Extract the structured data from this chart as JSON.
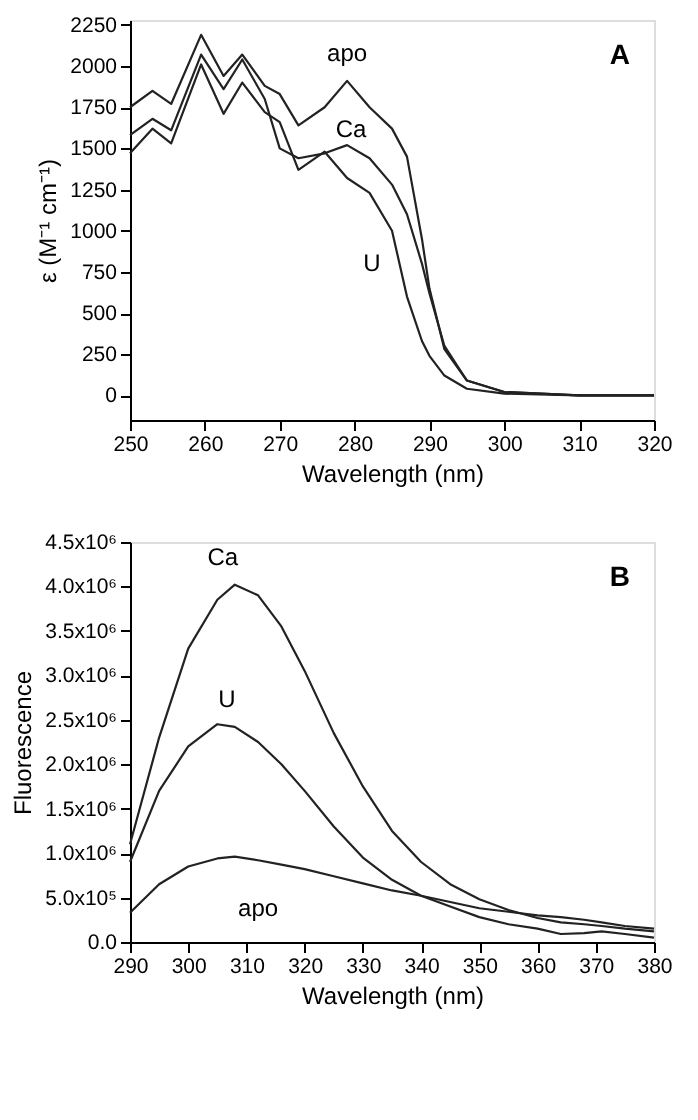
{
  "chart_data": [
    {
      "type": "line",
      "xlabel": "Wavelength  (nm)",
      "ylabel": "ε (M⁻¹ cm⁻¹)",
      "annotations": [
        "A"
      ],
      "grid": false,
      "marker": "none",
      "line_style": "solid",
      "x": [
        250,
        253,
        255.5,
        259.5,
        262.5,
        265,
        268,
        270,
        272.5,
        276,
        279,
        282,
        285,
        287,
        289,
        290,
        292,
        295,
        300,
        310,
        320
      ],
      "xlim": [
        250,
        320
      ],
      "xticks": [
        250,
        260,
        270,
        280,
        290,
        300,
        310,
        320
      ],
      "ylim": [
        -150,
        2280
      ],
      "yticks": [
        0,
        250,
        500,
        750,
        1000,
        1250,
        1500,
        1750,
        2000,
        2250
      ],
      "series": [
        {
          "name": "apo",
          "color": "#222222",
          "values": [
            1750,
            1850,
            1770,
            2190,
            1940,
            2070,
            1880,
            1830,
            1640,
            1750,
            1910,
            1750,
            1620,
            1450,
            950,
            650,
            280,
            90,
            20,
            0,
            0
          ]
        },
        {
          "name": "Ca",
          "color": "#222222",
          "values": [
            1580,
            1680,
            1610,
            2070,
            1860,
            2040,
            1800,
            1500,
            1440,
            1470,
            1520,
            1440,
            1280,
            1100,
            800,
            620,
            300,
            90,
            20,
            0,
            0
          ]
        },
        {
          "name": "U",
          "color": "#222222",
          "values": [
            1470,
            1620,
            1530,
            2010,
            1710,
            1900,
            1720,
            1660,
            1370,
            1480,
            1320,
            1230,
            1000,
            600,
            330,
            240,
            120,
            40,
            10,
            0,
            0
          ]
        }
      ]
    },
    {
      "type": "line",
      "xlabel": "Wavelength  (nm)",
      "ylabel": "Fluorescence",
      "annotations": [
        "B"
      ],
      "grid": false,
      "marker": "none",
      "line_style": "solid",
      "x": [
        290,
        295,
        300,
        305,
        308,
        312,
        316,
        320,
        325,
        330,
        335,
        340,
        345,
        350,
        355,
        360,
        364,
        368,
        371,
        375,
        380
      ],
      "xlim": [
        290,
        380
      ],
      "xticks": [
        290,
        300,
        310,
        320,
        330,
        340,
        350,
        360,
        370,
        380
      ],
      "ylim": [
        0,
        4500000
      ],
      "yticks": [
        {
          "value": 0,
          "label": "0.0"
        },
        {
          "value": 500000,
          "label": "5.0x10⁵"
        },
        {
          "value": 1000000,
          "label": "1.0x10⁶"
        },
        {
          "value": 1500000,
          "label": "1.5x10⁶"
        },
        {
          "value": 2000000,
          "label": "2.0x10⁶"
        },
        {
          "value": 2500000,
          "label": "2.5x10⁶"
        },
        {
          "value": 3000000,
          "label": "3.0x10⁶"
        },
        {
          "value": 3500000,
          "label": "3.5x10⁶"
        },
        {
          "value": 4000000,
          "label": "4.0x10⁶"
        },
        {
          "value": 4500000,
          "label": "4.5x10⁶"
        }
      ],
      "series": [
        {
          "name": "Ca",
          "color": "#222222",
          "values": [
            1100000,
            2300000,
            3300000,
            3850000,
            4020000,
            3900000,
            3550000,
            3050000,
            2350000,
            1750000,
            1250000,
            900000,
            650000,
            480000,
            360000,
            270000,
            220000,
            200000,
            180000,
            150000,
            120000
          ]
        },
        {
          "name": "U",
          "color": "#222222",
          "values": [
            900000,
            1700000,
            2200000,
            2450000,
            2420000,
            2250000,
            2000000,
            1700000,
            1300000,
            950000,
            700000,
            520000,
            400000,
            280000,
            200000,
            150000,
            90000,
            100000,
            120000,
            90000,
            50000
          ]
        },
        {
          "name": "apo",
          "color": "#222222",
          "values": [
            330000,
            650000,
            850000,
            940000,
            960000,
            920000,
            870000,
            820000,
            740000,
            660000,
            580000,
            520000,
            450000,
            380000,
            340000,
            300000,
            280000,
            250000,
            220000,
            180000,
            150000
          ]
        }
      ]
    }
  ]
}
